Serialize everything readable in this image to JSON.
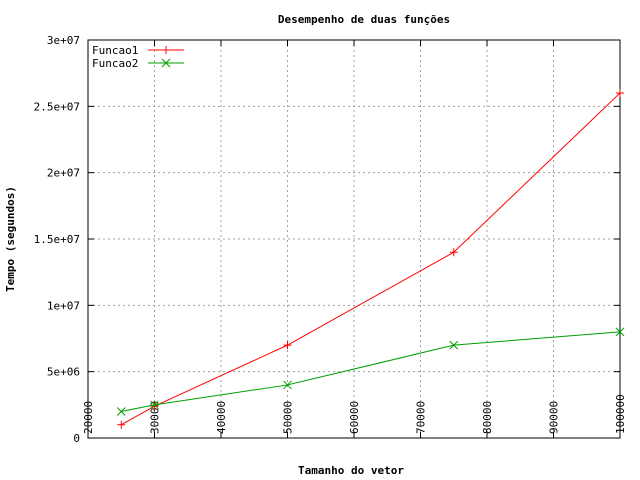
{
  "chart_data": {
    "type": "line",
    "title": "Desempenho de duas funções",
    "xlabel": "Tamanho do vetor",
    "ylabel": "Tempo (segundos)",
    "xlim": [
      20000,
      100000
    ],
    "ylim": [
      0,
      30000000
    ],
    "x_ticks": [
      20000,
      30000,
      40000,
      50000,
      60000,
      70000,
      80000,
      90000,
      100000
    ],
    "x_tick_labels": [
      "20000",
      "30000",
      "40000",
      "50000",
      "60000",
      "70000",
      "80000",
      "90000",
      "100000"
    ],
    "y_ticks": [
      0,
      5000000,
      10000000,
      15000000,
      20000000,
      25000000,
      30000000
    ],
    "y_tick_labels": [
      "0",
      "5e+06",
      "1e+07",
      "1.5e+07",
      "2e+07",
      "2.5e+07",
      "3e+07"
    ],
    "grid": true,
    "legend_position": "top-left",
    "series": [
      {
        "name": "Funcao1",
        "color": "#ff0000",
        "marker": "plus",
        "x": [
          25000,
          30000,
          50000,
          75000,
          100000
        ],
        "y": [
          1000000,
          2400000,
          7000000,
          14000000,
          26000000
        ]
      },
      {
        "name": "Funcao2",
        "color": "#00a000",
        "marker": "cross",
        "x": [
          25000,
          30000,
          50000,
          75000,
          100000
        ],
        "y": [
          2000000,
          2500000,
          4000000,
          7000000,
          8000000
        ]
      }
    ]
  }
}
